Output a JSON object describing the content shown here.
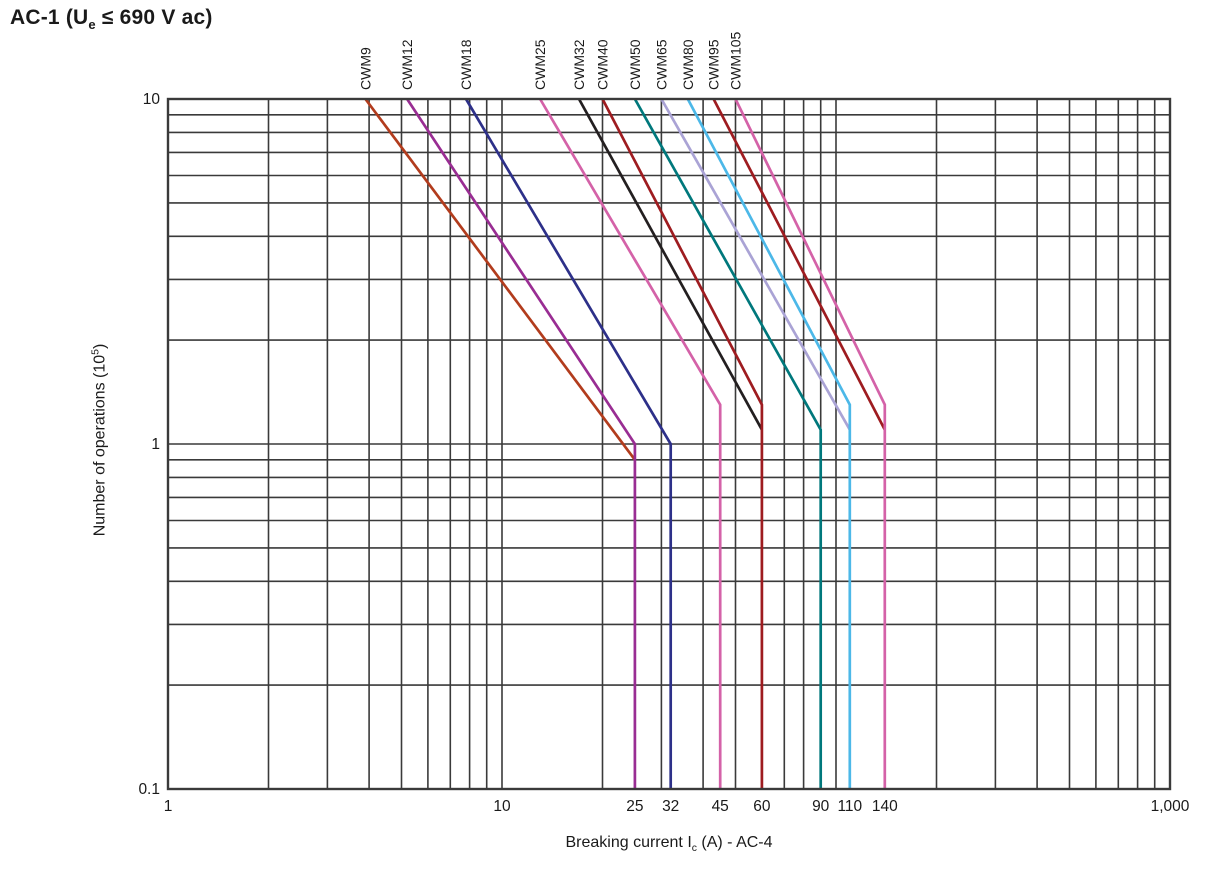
{
  "chart_data": {
    "type": "line",
    "scale": "log-log",
    "title": {
      "pre": "AC-1 (U",
      "sub": "e",
      "post": " ≤ 690 V ac)"
    },
    "xlabel": {
      "pre": "Breaking current I",
      "sub": "c",
      "post": " (A) - AC-4"
    },
    "ylabel": {
      "pre": "Number of operations (10",
      "sup": "5",
      "post": ")"
    },
    "grid_color": "#3a3a3a",
    "text_color": "#1a1a1a",
    "x_axis": {
      "min": 1,
      "max": 1000,
      "scale": "log",
      "ticks": [
        {
          "v": 1,
          "label": "1"
        },
        {
          "v": 10,
          "label": "10"
        },
        {
          "v": 25,
          "label": "25"
        },
        {
          "v": 32,
          "label": "32"
        },
        {
          "v": 45,
          "label": "45"
        },
        {
          "v": 60,
          "label": "60"
        },
        {
          "v": 90,
          "label": "90"
        },
        {
          "v": 110,
          "label": "110"
        },
        {
          "v": 140,
          "label": "140"
        },
        {
          "v": 1000,
          "label": "1,000"
        }
      ]
    },
    "y_axis": {
      "min": 0.1,
      "max": 10,
      "scale": "log",
      "ticks": [
        {
          "v": 10,
          "label": "10"
        },
        {
          "v": 1,
          "label": "1"
        },
        {
          "v": 0.1,
          "label": "0.1"
        }
      ]
    },
    "series": [
      {
        "name": "CWM9",
        "color": "#b23c1d",
        "points": [
          [
            3.9,
            10
          ],
          [
            25,
            0.9
          ]
        ]
      },
      {
        "name": "CWM12",
        "color": "#992d93",
        "points": [
          [
            5.2,
            10
          ],
          [
            25,
            1.0
          ],
          [
            25,
            0.1
          ]
        ]
      },
      {
        "name": "CWM18",
        "color": "#2d3089",
        "points": [
          [
            7.8,
            10
          ],
          [
            32,
            1.0
          ],
          [
            32,
            0.1
          ]
        ]
      },
      {
        "name": "CWM25",
        "color": "#d462a8",
        "points": [
          [
            13,
            10
          ],
          [
            45,
            1.3
          ],
          [
            45,
            0.1
          ]
        ]
      },
      {
        "name": "CWM32",
        "color": "#231f20",
        "points": [
          [
            17,
            10
          ],
          [
            60,
            1.1
          ]
        ]
      },
      {
        "name": "CWM40",
        "color": "#9e1c20",
        "points": [
          [
            20,
            10
          ],
          [
            60,
            1.3
          ],
          [
            60,
            0.1
          ]
        ]
      },
      {
        "name": "CWM50",
        "color": "#00787c",
        "points": [
          [
            25,
            10
          ],
          [
            90,
            1.1
          ],
          [
            90,
            0.1
          ]
        ]
      },
      {
        "name": "CWM65",
        "color": "#aaa3d5",
        "points": [
          [
            30,
            10
          ],
          [
            110,
            1.1
          ]
        ]
      },
      {
        "name": "CWM80",
        "color": "#4cb8e8",
        "points": [
          [
            36,
            10
          ],
          [
            110,
            1.3
          ],
          [
            110,
            0.1
          ]
        ]
      },
      {
        "name": "CWM95",
        "color": "#9e1c20",
        "points": [
          [
            43,
            10
          ],
          [
            140,
            1.1
          ]
        ]
      },
      {
        "name": "CWM105",
        "color": "#d462a8",
        "points": [
          [
            50,
            10
          ],
          [
            140,
            1.3
          ],
          [
            140,
            0.1
          ]
        ]
      }
    ]
  }
}
